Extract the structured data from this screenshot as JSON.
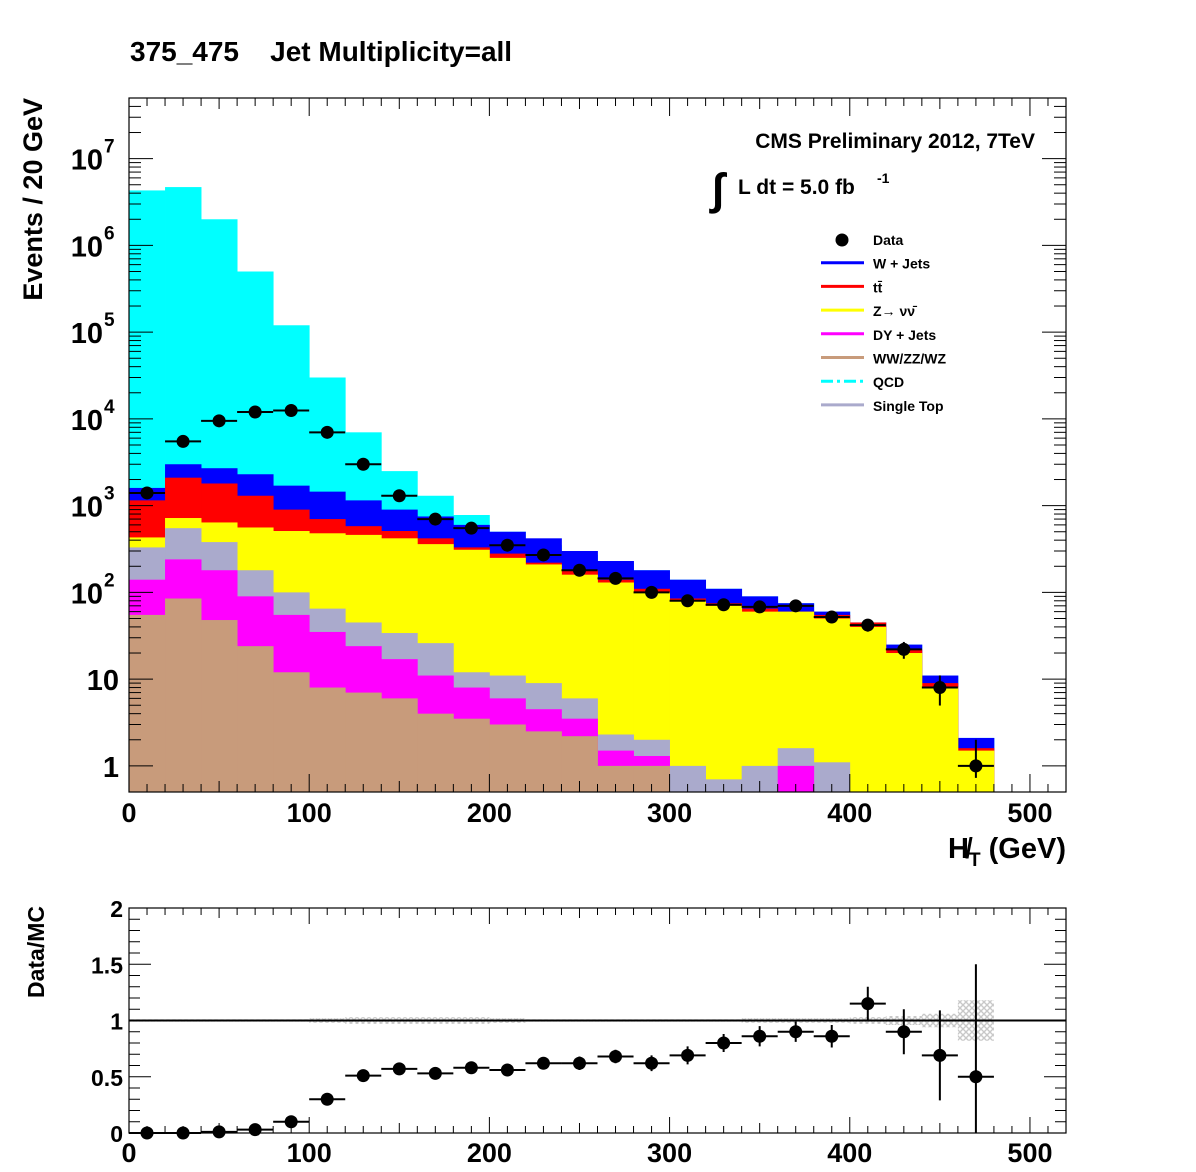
{
  "title": "375_475    Jet Multiplicity=all",
  "annotations": {
    "experiment": "CMS Preliminary 2012, 7TeV",
    "lumi_prefix": "L dt = 5.0 fb",
    "lumi_exponent": "-1"
  },
  "colors": {
    "w_jets": "#0000ff",
    "ttbar": "#ff0000",
    "znunu": "#ffff00",
    "dy_jets": "#ff00ff",
    "diboson": "#c89b7b",
    "qcd": "#00ffff",
    "single_top": "#aaaacc",
    "data": "#000000",
    "uncertainty_band": "#c8c8c8"
  },
  "chart_data": [
    {
      "type": "bar",
      "stacked": true,
      "log_y": true,
      "xlabel": "H̸T (GeV)",
      "ylabel": "Events / 20 GeV",
      "xlim": [
        0,
        520
      ],
      "ylim": [
        0.5,
        50000000
      ],
      "x_ticks": [
        "0",
        "100",
        "200",
        "300",
        "400",
        "500"
      ],
      "y_ticks": [
        "1",
        "10",
        "10^2",
        "10^3",
        "10^4",
        "10^5",
        "10^6",
        "10^7"
      ],
      "legend_position": "top-right",
      "legend": [
        {
          "label": "Data",
          "style": "marker",
          "color_key": "data"
        },
        {
          "label": "W + Jets",
          "style": "line",
          "color_key": "w_jets"
        },
        {
          "label": "tt̄",
          "style": "line",
          "color_key": "ttbar"
        },
        {
          "label": "Z→ νν̄",
          "style": "line",
          "color_key": "znunu"
        },
        {
          "label": "DY + Jets",
          "style": "line",
          "color_key": "dy_jets"
        },
        {
          "label": "WW/ZZ/WZ",
          "style": "line",
          "color_key": "diboson"
        },
        {
          "label": "QCD",
          "style": "dashdot",
          "color_key": "qcd"
        },
        {
          "label": "Single Top",
          "style": "line",
          "color_key": "single_top"
        }
      ],
      "bin_edges": [
        0,
        20,
        40,
        60,
        80,
        100,
        120,
        140,
        160,
        180,
        200,
        220,
        240,
        260,
        280,
        300,
        320,
        340,
        360,
        380,
        400,
        420,
        440,
        460,
        480
      ],
      "stack_order": [
        "WW/ZZ/WZ",
        "DY + Jets",
        "Single Top",
        "Z→ νν̄",
        "tt̄",
        "W + Jets",
        "QCD"
      ],
      "stack_cumulative": {
        "WW/ZZ/WZ": [
          55,
          85,
          48,
          24,
          12,
          8,
          7,
          6,
          4,
          3.5,
          3,
          2.5,
          2.2,
          1,
          1,
          0.5,
          0.5,
          0.5,
          0.5,
          0.5,
          0.5,
          0.5,
          0.5,
          0.5
        ],
        "DY + Jets": [
          140,
          240,
          180,
          90,
          55,
          35,
          24,
          17,
          11,
          8,
          6,
          4.5,
          3.5,
          1.5,
          1.3,
          0.5,
          0.5,
          0.5,
          1.0,
          0.5,
          0.5,
          0.5,
          0.5,
          0.5
        ],
        "Single Top": [
          330,
          550,
          380,
          180,
          100,
          65,
          45,
          34,
          26,
          12,
          11,
          9,
          6,
          2.3,
          2.0,
          1.0,
          0.7,
          1.0,
          1.6,
          1.1,
          0.5,
          0.5,
          0.5,
          0.5
        ],
        "Z→ νν̄": [
          430,
          720,
          640,
          560,
          510,
          480,
          460,
          420,
          360,
          310,
          250,
          210,
          160,
          130,
          100,
          80,
          70,
          60,
          60,
          50,
          40,
          20,
          8,
          1.5
        ],
        "tt̄": [
          1150,
          2100,
          1800,
          1300,
          900,
          700,
          580,
          510,
          420,
          330,
          280,
          220,
          180,
          140,
          110,
          85,
          75,
          65,
          60,
          55,
          45,
          22,
          9,
          1.6
        ],
        "W + Jets": [
          1600,
          3000,
          2700,
          2300,
          1700,
          1450,
          1150,
          900,
          750,
          600,
          500,
          420,
          300,
          230,
          180,
          140,
          110,
          90,
          75,
          60,
          45,
          25,
          11,
          2.1
        ],
        "QCD": [
          4300000,
          4700000,
          2000000,
          500000,
          120000,
          30000,
          7000,
          2500,
          1300,
          780,
          500,
          350,
          270,
          220,
          180,
          140,
          110,
          90,
          75,
          60,
          45,
          25,
          11,
          2.1
        ]
      },
      "data_points": {
        "x": [
          10,
          30,
          50,
          70,
          90,
          110,
          130,
          150,
          170,
          190,
          210,
          230,
          250,
          270,
          290,
          310,
          330,
          350,
          370,
          390,
          410,
          430,
          450,
          470
        ],
        "y": [
          1400,
          5500,
          9500,
          12000,
          12500,
          7000,
          3000,
          1300,
          700,
          550,
          350,
          270,
          180,
          145,
          100,
          80,
          72,
          68,
          70,
          52,
          42,
          22,
          8,
          1
        ],
        "x_err": 10,
        "y_err_rel": [
          0.03,
          0.015,
          0.01,
          0.01,
          0.01,
          0.012,
          0.02,
          0.03,
          0.04,
          0.045,
          0.055,
          0.06,
          0.075,
          0.085,
          0.1,
          0.11,
          0.12,
          0.12,
          0.12,
          0.14,
          0.16,
          0.22,
          0.38,
          1.0
        ]
      }
    },
    {
      "type": "scatter",
      "xlabel": "",
      "ylabel": "Data/MC",
      "xlim": [
        0,
        520
      ],
      "ylim": [
        0,
        2
      ],
      "x_ticks": [
        "0",
        "100",
        "200",
        "300",
        "400",
        "500"
      ],
      "y_ticks": [
        "0",
        "0.5",
        "1",
        "1.5",
        "2"
      ],
      "reference_line": 1,
      "points": {
        "x": [
          10,
          30,
          50,
          70,
          90,
          110,
          130,
          150,
          170,
          190,
          210,
          230,
          250,
          270,
          290,
          310,
          330,
          350,
          370,
          390,
          410,
          430,
          450,
          470
        ],
        "y": [
          0.0,
          0.0,
          0.01,
          0.03,
          0.1,
          0.3,
          0.51,
          0.57,
          0.53,
          0.58,
          0.56,
          0.62,
          0.62,
          0.68,
          0.62,
          0.69,
          0.8,
          0.86,
          0.9,
          0.86,
          1.15,
          0.9,
          0.69,
          0.5
        ],
        "y_err": [
          0.0,
          0.0,
          0.0,
          0.0,
          0.005,
          0.01,
          0.05,
          0.05,
          0.05,
          0.05,
          0.05,
          0.05,
          0.06,
          0.06,
          0.07,
          0.08,
          0.08,
          0.09,
          0.09,
          0.1,
          0.15,
          0.2,
          0.4,
          1.0
        ]
      },
      "uncertainty_band_halfwidth": [
        0.01,
        0.01,
        0.01,
        0.01,
        0.01,
        0.02,
        0.03,
        0.03,
        0.03,
        0.03,
        0.02,
        0.01,
        0.01,
        0.01,
        0.01,
        0.01,
        0.01,
        0.02,
        0.02,
        0.02,
        0.03,
        0.04,
        0.06,
        0.18
      ]
    }
  ]
}
